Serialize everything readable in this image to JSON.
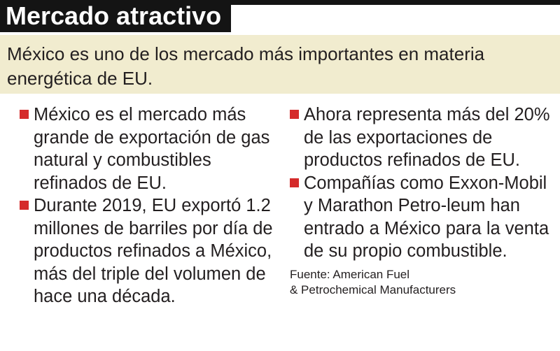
{
  "title": "Mercado atractivo",
  "subtitle": "México es uno de los mercado más importantes en materia energética de EU.",
  "left_bullets": [
    "México es el mercado más grande de exportación de gas natural y combustibles refinados de EU.",
    "Durante 2019, EU exportó 1.2 millones de barriles por día de productos refinados a México, más del triple del volumen de hace una década."
  ],
  "right_bullets": [
    "Ahora representa más del 20% de las exportaciones de productos refinados de EU.",
    "Compañías como Exxon-Mobil y Marathon Petro-leum han entrado a México para la venta de su propio combustible."
  ],
  "source_line1": "Fuente: American Fuel",
  "source_line2": "& Petrochemical Manufacturers",
  "colors": {
    "title_background": "#141414",
    "subtitle_background": "#f1eccf",
    "bullet_square": "#d52b2b"
  }
}
